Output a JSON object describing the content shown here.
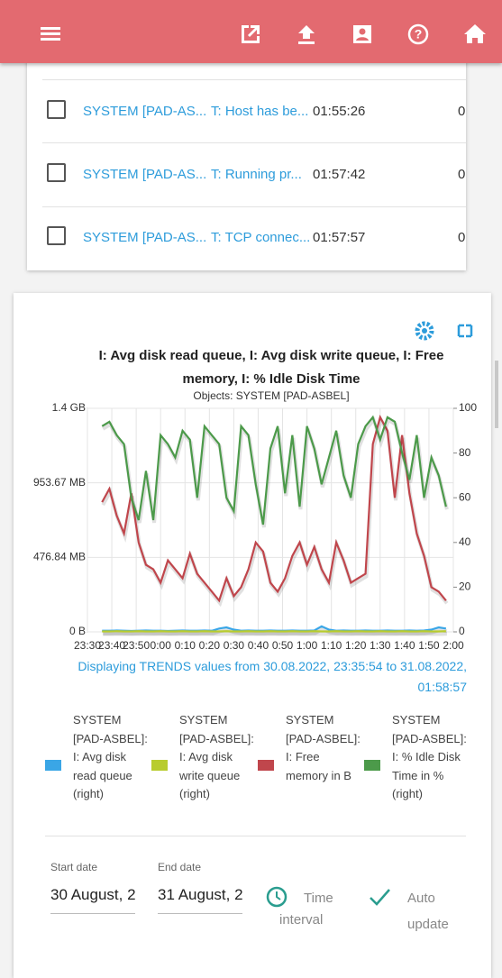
{
  "rows": [
    {
      "host": "SYSTEM [PAD-AS...",
      "name": "T: Host has be...",
      "time": "01:55:26",
      "count": "0"
    },
    {
      "host": "SYSTEM [PAD-AS...",
      "name": "T: Running pr...",
      "time": "01:57:42",
      "count": "0"
    },
    {
      "host": "SYSTEM [PAD-AS...",
      "name": "T: TCP connec...",
      "time": "01:57:57",
      "count": "0"
    }
  ],
  "chart_data": {
    "type": "line",
    "title": "I: Avg disk read queue, I: Avg disk write queue, I: Free memory, I: % Idle Disk Time",
    "subtitle": "Objects: SYSTEM [PAD-ASBEL]",
    "caption": "Displaying TRENDS values from 30.08.2022, 23:35:54 to 31.08.2022, 01:58:57",
    "x": [
      "23:36",
      "23:39",
      "23:42",
      "23:45",
      "23:48",
      "23:51",
      "23:54",
      "23:57",
      "0:00",
      "0:03",
      "0:06",
      "0:09",
      "0:12",
      "0:15",
      "0:18",
      "0:21",
      "0:24",
      "0:27",
      "0:30",
      "0:33",
      "0:36",
      "0:39",
      "0:42",
      "0:45",
      "0:48",
      "0:51",
      "0:54",
      "0:57",
      "1:00",
      "1:03",
      "1:06",
      "1:09",
      "1:12",
      "1:15",
      "1:18",
      "1:21",
      "1:24",
      "1:27",
      "1:30",
      "1:33",
      "1:36",
      "1:39",
      "1:42",
      "1:45",
      "1:48",
      "1:51",
      "1:54",
      "1:57"
    ],
    "xlim": [
      "23:30",
      "2:00"
    ],
    "xticks": [
      "23:30",
      "23:40",
      "23:50",
      "0:00",
      "0:10",
      "0:20",
      "0:30",
      "0:40",
      "0:50",
      "1:00",
      "1:10",
      "1:20",
      "1:30",
      "1:40",
      "1:50",
      "2:00"
    ],
    "ylim": [
      0,
      1500000000
    ],
    "yticks": [
      {
        "value": 0,
        "label": "0 B"
      },
      {
        "value": 500000000,
        "label": "476.84 MB"
      },
      {
        "value": 1000000000,
        "label": "953.67 MB"
      },
      {
        "value": 1500000000,
        "label": "1.4 GB"
      }
    ],
    "y2lim": [
      0,
      100
    ],
    "y2ticks": [
      0,
      20,
      40,
      60,
      80,
      100
    ],
    "grid": true,
    "series": [
      {
        "name": "SYSTEM [PAD-ASBEL]: I: Avg disk read queue (right)",
        "color": "#3aa6e6",
        "axis": "y2",
        "values": [
          0.5,
          0.5,
          0.6,
          0.5,
          0.4,
          0.5,
          0.6,
          0.5,
          0.5,
          0.4,
          0.5,
          0.6,
          0.5,
          0.5,
          0.6,
          0.5,
          1.5,
          2,
          1,
          0.5,
          0.6,
          0.5,
          0.5,
          0.6,
          0.5,
          0.5,
          0.6,
          0.5,
          0.5,
          0.6,
          2.5,
          1,
          0.5,
          0.6,
          0.5,
          0.5,
          0.6,
          0.5,
          0.5,
          0.6,
          0.5,
          0.5,
          0.6,
          0.5,
          0.6,
          1,
          2,
          1.5
        ]
      },
      {
        "name": "SYSTEM [PAD-ASBEL]: I: Avg disk write queue (right)",
        "color": "#b8cc2e",
        "axis": "y2",
        "values": [
          0.2,
          0.2,
          0.3,
          0.2,
          0.2,
          0.3,
          0.2,
          0.2,
          0.3,
          0.2,
          0.2,
          0.3,
          0.2,
          0.2,
          0.3,
          0.2,
          0.2,
          0.3,
          0.2,
          0.2,
          0.3,
          0.2,
          0.2,
          0.3,
          0.2,
          0.2,
          0.3,
          0.2,
          0.2,
          0.3,
          0.2,
          0.2,
          0.3,
          0.2,
          0.2,
          0.3,
          0.2,
          0.2,
          0.3,
          0.2,
          0.2,
          0.3,
          0.2,
          0.2,
          0.3,
          0.2,
          0.2,
          0.3
        ]
      },
      {
        "name": "SYSTEM [PAD-ASBEL]: I: Free memory in B",
        "color": "#c0464c",
        "values": [
          870000000,
          960000000,
          780000000,
          660000000,
          930000000,
          600000000,
          450000000,
          420000000,
          330000000,
          480000000,
          420000000,
          360000000,
          525000000,
          390000000,
          330000000,
          270000000,
          210000000,
          360000000,
          240000000,
          300000000,
          420000000,
          600000000,
          540000000,
          330000000,
          270000000,
          360000000,
          510000000,
          600000000,
          450000000,
          570000000,
          420000000,
          330000000,
          600000000,
          480000000,
          330000000,
          360000000,
          390000000,
          1260000000,
          1440000000,
          1350000000,
          900000000,
          1320000000,
          930000000,
          660000000,
          510000000,
          300000000,
          270000000,
          210000000
        ]
      },
      {
        "name": "SYSTEM [PAD-ASBEL]: I: % Idle Disk Time in % (right)",
        "color": "#4c9a4a",
        "axis": "y2",
        "values": [
          92,
          94,
          88,
          84,
          60,
          50,
          72,
          50,
          88,
          84,
          78,
          90,
          86,
          60,
          92,
          88,
          84,
          60,
          54,
          92,
          88,
          66,
          48,
          82,
          92,
          62,
          88,
          56,
          92,
          82,
          66,
          78,
          90,
          70,
          60,
          84,
          92,
          96,
          86,
          96,
          94,
          80,
          68,
          88,
          60,
          78,
          70,
          56
        ]
      }
    ]
  },
  "form": {
    "start_label": "Start date",
    "start_value": "30 August, 2",
    "end_label": "End date",
    "end_value": "31 August, 2",
    "time_interval": [
      "Time",
      "interval"
    ],
    "auto_update": [
      "Auto",
      "update"
    ]
  }
}
